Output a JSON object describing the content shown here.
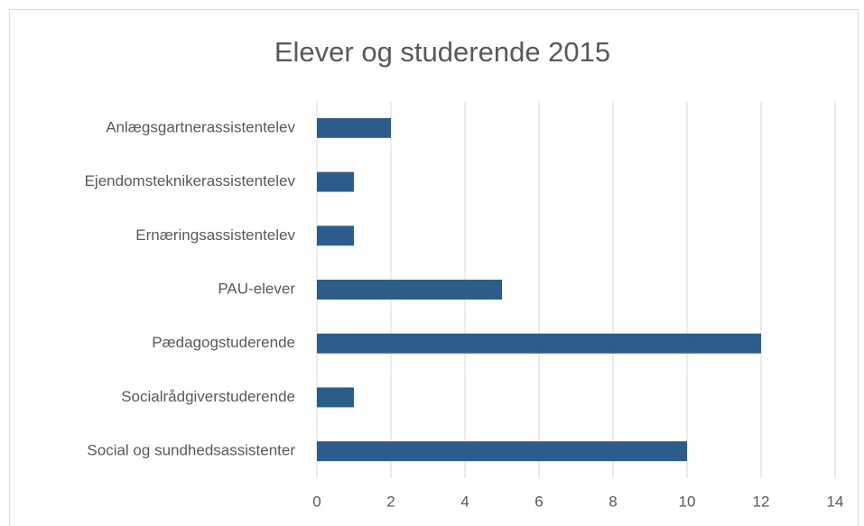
{
  "chart_data": {
    "type": "bar",
    "orientation": "horizontal",
    "title": "Elever og studerende 2015",
    "categories": [
      "Anlægsgartnerassistentelev",
      "Ejendomsteknikerassistentelev",
      "Ernæringsassistentelev",
      "PAU-elever",
      "Pædagogstuderende",
      "Socialrådgiverstuderende",
      "Social og sundhedsassistenter"
    ],
    "values": [
      2,
      1,
      1,
      5,
      12,
      1,
      10
    ],
    "color": "#2b5c8a",
    "xlim": [
      0,
      14
    ],
    "xticks": [
      0,
      2,
      4,
      6,
      8,
      10,
      12,
      14
    ],
    "grid": true
  }
}
